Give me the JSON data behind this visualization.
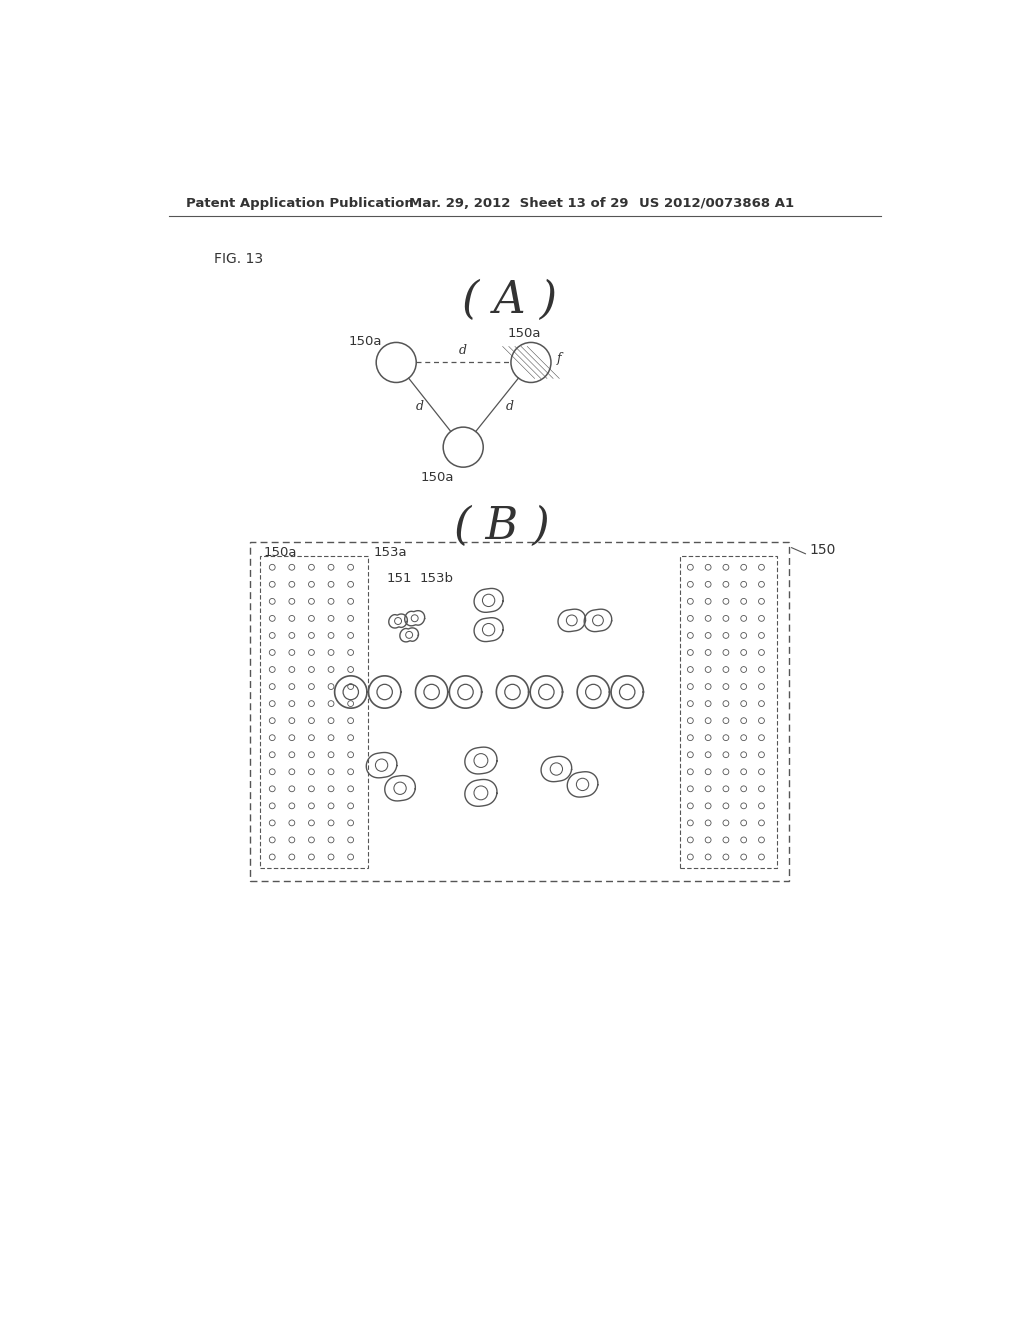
{
  "header_left": "Patent Application Publication",
  "header_mid": "Mar. 29, 2012  Sheet 13 of 29",
  "header_right": "US 2012/0073868 A1",
  "fig_label": "FIG. 13",
  "section_A_label": "( A )",
  "section_B_label": "( B )",
  "label_150": "150",
  "label_150a": "150a",
  "label_153a": "153a",
  "label_153b": "153b",
  "label_151": "151",
  "background": "#ffffff",
  "line_color": "#555555",
  "text_color": "#333333"
}
